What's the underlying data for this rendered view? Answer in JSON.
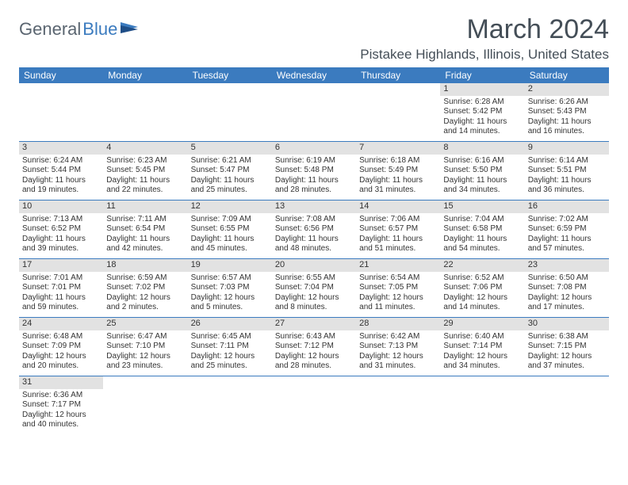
{
  "brand": {
    "general": "General",
    "blue": "Blue"
  },
  "title": "March 2024",
  "location": "Pistakee Highlands, Illinois, United States",
  "colors": {
    "header_bg": "#3b7bbf",
    "header_text": "#ffffff",
    "daynum_bg": "#e2e2e2",
    "border": "#3b7bbf",
    "title_color": "#444e57"
  },
  "weekdays": [
    "Sunday",
    "Monday",
    "Tuesday",
    "Wednesday",
    "Thursday",
    "Friday",
    "Saturday"
  ],
  "weeks": [
    [
      null,
      null,
      null,
      null,
      null,
      {
        "n": "1",
        "sr": "Sunrise: 6:28 AM",
        "ss": "Sunset: 5:42 PM",
        "dl1": "Daylight: 11 hours",
        "dl2": "and 14 minutes."
      },
      {
        "n": "2",
        "sr": "Sunrise: 6:26 AM",
        "ss": "Sunset: 5:43 PM",
        "dl1": "Daylight: 11 hours",
        "dl2": "and 16 minutes."
      }
    ],
    [
      {
        "n": "3",
        "sr": "Sunrise: 6:24 AM",
        "ss": "Sunset: 5:44 PM",
        "dl1": "Daylight: 11 hours",
        "dl2": "and 19 minutes."
      },
      {
        "n": "4",
        "sr": "Sunrise: 6:23 AM",
        "ss": "Sunset: 5:45 PM",
        "dl1": "Daylight: 11 hours",
        "dl2": "and 22 minutes."
      },
      {
        "n": "5",
        "sr": "Sunrise: 6:21 AM",
        "ss": "Sunset: 5:47 PM",
        "dl1": "Daylight: 11 hours",
        "dl2": "and 25 minutes."
      },
      {
        "n": "6",
        "sr": "Sunrise: 6:19 AM",
        "ss": "Sunset: 5:48 PM",
        "dl1": "Daylight: 11 hours",
        "dl2": "and 28 minutes."
      },
      {
        "n": "7",
        "sr": "Sunrise: 6:18 AM",
        "ss": "Sunset: 5:49 PM",
        "dl1": "Daylight: 11 hours",
        "dl2": "and 31 minutes."
      },
      {
        "n": "8",
        "sr": "Sunrise: 6:16 AM",
        "ss": "Sunset: 5:50 PM",
        "dl1": "Daylight: 11 hours",
        "dl2": "and 34 minutes."
      },
      {
        "n": "9",
        "sr": "Sunrise: 6:14 AM",
        "ss": "Sunset: 5:51 PM",
        "dl1": "Daylight: 11 hours",
        "dl2": "and 36 minutes."
      }
    ],
    [
      {
        "n": "10",
        "sr": "Sunrise: 7:13 AM",
        "ss": "Sunset: 6:52 PM",
        "dl1": "Daylight: 11 hours",
        "dl2": "and 39 minutes."
      },
      {
        "n": "11",
        "sr": "Sunrise: 7:11 AM",
        "ss": "Sunset: 6:54 PM",
        "dl1": "Daylight: 11 hours",
        "dl2": "and 42 minutes."
      },
      {
        "n": "12",
        "sr": "Sunrise: 7:09 AM",
        "ss": "Sunset: 6:55 PM",
        "dl1": "Daylight: 11 hours",
        "dl2": "and 45 minutes."
      },
      {
        "n": "13",
        "sr": "Sunrise: 7:08 AM",
        "ss": "Sunset: 6:56 PM",
        "dl1": "Daylight: 11 hours",
        "dl2": "and 48 minutes."
      },
      {
        "n": "14",
        "sr": "Sunrise: 7:06 AM",
        "ss": "Sunset: 6:57 PM",
        "dl1": "Daylight: 11 hours",
        "dl2": "and 51 minutes."
      },
      {
        "n": "15",
        "sr": "Sunrise: 7:04 AM",
        "ss": "Sunset: 6:58 PM",
        "dl1": "Daylight: 11 hours",
        "dl2": "and 54 minutes."
      },
      {
        "n": "16",
        "sr": "Sunrise: 7:02 AM",
        "ss": "Sunset: 6:59 PM",
        "dl1": "Daylight: 11 hours",
        "dl2": "and 57 minutes."
      }
    ],
    [
      {
        "n": "17",
        "sr": "Sunrise: 7:01 AM",
        "ss": "Sunset: 7:01 PM",
        "dl1": "Daylight: 11 hours",
        "dl2": "and 59 minutes."
      },
      {
        "n": "18",
        "sr": "Sunrise: 6:59 AM",
        "ss": "Sunset: 7:02 PM",
        "dl1": "Daylight: 12 hours",
        "dl2": "and 2 minutes."
      },
      {
        "n": "19",
        "sr": "Sunrise: 6:57 AM",
        "ss": "Sunset: 7:03 PM",
        "dl1": "Daylight: 12 hours",
        "dl2": "and 5 minutes."
      },
      {
        "n": "20",
        "sr": "Sunrise: 6:55 AM",
        "ss": "Sunset: 7:04 PM",
        "dl1": "Daylight: 12 hours",
        "dl2": "and 8 minutes."
      },
      {
        "n": "21",
        "sr": "Sunrise: 6:54 AM",
        "ss": "Sunset: 7:05 PM",
        "dl1": "Daylight: 12 hours",
        "dl2": "and 11 minutes."
      },
      {
        "n": "22",
        "sr": "Sunrise: 6:52 AM",
        "ss": "Sunset: 7:06 PM",
        "dl1": "Daylight: 12 hours",
        "dl2": "and 14 minutes."
      },
      {
        "n": "23",
        "sr": "Sunrise: 6:50 AM",
        "ss": "Sunset: 7:08 PM",
        "dl1": "Daylight: 12 hours",
        "dl2": "and 17 minutes."
      }
    ],
    [
      {
        "n": "24",
        "sr": "Sunrise: 6:48 AM",
        "ss": "Sunset: 7:09 PM",
        "dl1": "Daylight: 12 hours",
        "dl2": "and 20 minutes."
      },
      {
        "n": "25",
        "sr": "Sunrise: 6:47 AM",
        "ss": "Sunset: 7:10 PM",
        "dl1": "Daylight: 12 hours",
        "dl2": "and 23 minutes."
      },
      {
        "n": "26",
        "sr": "Sunrise: 6:45 AM",
        "ss": "Sunset: 7:11 PM",
        "dl1": "Daylight: 12 hours",
        "dl2": "and 25 minutes."
      },
      {
        "n": "27",
        "sr": "Sunrise: 6:43 AM",
        "ss": "Sunset: 7:12 PM",
        "dl1": "Daylight: 12 hours",
        "dl2": "and 28 minutes."
      },
      {
        "n": "28",
        "sr": "Sunrise: 6:42 AM",
        "ss": "Sunset: 7:13 PM",
        "dl1": "Daylight: 12 hours",
        "dl2": "and 31 minutes."
      },
      {
        "n": "29",
        "sr": "Sunrise: 6:40 AM",
        "ss": "Sunset: 7:14 PM",
        "dl1": "Daylight: 12 hours",
        "dl2": "and 34 minutes."
      },
      {
        "n": "30",
        "sr": "Sunrise: 6:38 AM",
        "ss": "Sunset: 7:15 PM",
        "dl1": "Daylight: 12 hours",
        "dl2": "and 37 minutes."
      }
    ],
    [
      {
        "n": "31",
        "sr": "Sunrise: 6:36 AM",
        "ss": "Sunset: 7:17 PM",
        "dl1": "Daylight: 12 hours",
        "dl2": "and 40 minutes."
      },
      null,
      null,
      null,
      null,
      null,
      null
    ]
  ]
}
